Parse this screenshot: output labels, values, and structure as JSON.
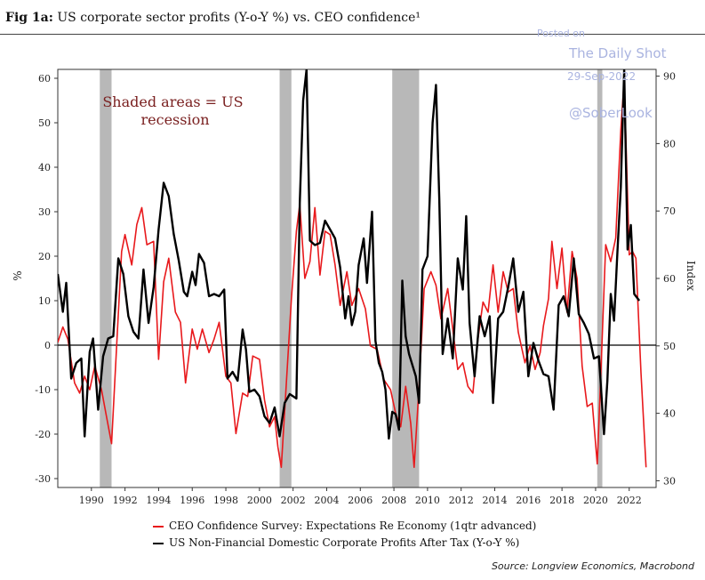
{
  "figure": {
    "label": "Fig 1a:",
    "title": "US corporate sector profits (Y-o-Y %) vs. CEO confidence¹"
  },
  "watermark": {
    "posted": "Posted on",
    "name": "The Daily Shot",
    "date": "29-Sep-2022",
    "handle": "@SoberLook"
  },
  "annotation": {
    "line1": "Shaded areas = US",
    "line2": "recession"
  },
  "legend": {
    "ceo": "CEO Confidence Survey: Expectations Re Economy (1qtr advanced)",
    "profits": "US Non-Financial Domestic Corporate Profits After Tax (Y-o-Y %)"
  },
  "source": "Source: Longview Economics, Macrobond",
  "chart_data": {
    "type": "line",
    "xlabel": "",
    "ylabel_left": "%",
    "ylabel_right": "Index",
    "xlim": [
      1988.0,
      2023.6
    ],
    "ylim_left": [
      -32,
      62
    ],
    "ylim_right": [
      29,
      91
    ],
    "x_ticks": [
      1990,
      1992,
      1994,
      1996,
      1998,
      2000,
      2002,
      2004,
      2006,
      2008,
      2010,
      2012,
      2014,
      2016,
      2018,
      2020,
      2022
    ],
    "y_left_ticks": [
      -30,
      -20,
      -10,
      0,
      10,
      20,
      30,
      40,
      50,
      60
    ],
    "y_right_ticks": [
      30,
      40,
      50,
      60,
      70,
      80,
      90
    ],
    "grid": false,
    "recessions": [
      [
        1990.5,
        1991.2
      ],
      [
        2001.2,
        2001.9
      ],
      [
        2007.9,
        2009.5
      ],
      [
        2020.1,
        2020.4
      ]
    ],
    "colors": {
      "ceo": "#e8191c",
      "profits": "#000000",
      "recession": "#b8b8b8"
    },
    "series": [
      {
        "name": "CEO Confidence Survey: Expectations Re Economy (1qtr advanced)",
        "axis": "right",
        "color": "#e8191c",
        "points": [
          [
            1988.0,
            50.5
          ],
          [
            1988.3,
            52.8
          ],
          [
            1988.6,
            51.0
          ],
          [
            1989.0,
            44.5
          ],
          [
            1989.3,
            43.0
          ],
          [
            1989.6,
            45.5
          ],
          [
            1989.9,
            43.5
          ],
          [
            1990.2,
            47.0
          ],
          [
            1990.6,
            43.5
          ],
          [
            1990.9,
            39.5
          ],
          [
            1991.2,
            35.5
          ],
          [
            1991.5,
            50.0
          ],
          [
            1991.8,
            64.0
          ],
          [
            1992.0,
            66.5
          ],
          [
            1992.4,
            62.0
          ],
          [
            1992.7,
            68.0
          ],
          [
            1993.0,
            70.5
          ],
          [
            1993.3,
            65.0
          ],
          [
            1993.7,
            65.5
          ],
          [
            1994.0,
            48.0
          ],
          [
            1994.3,
            59.5
          ],
          [
            1994.6,
            63.0
          ],
          [
            1995.0,
            55.0
          ],
          [
            1995.3,
            53.5
          ],
          [
            1995.6,
            44.5
          ],
          [
            1996.0,
            52.5
          ],
          [
            1996.3,
            49.5
          ],
          [
            1996.6,
            52.5
          ],
          [
            1997.0,
            49.0
          ],
          [
            1997.3,
            51.0
          ],
          [
            1997.6,
            53.5
          ],
          [
            1998.0,
            45.5
          ],
          [
            1998.3,
            44.5
          ],
          [
            1998.6,
            37.0
          ],
          [
            1999.0,
            43.0
          ],
          [
            1999.3,
            42.5
          ],
          [
            1999.6,
            48.5
          ],
          [
            2000.0,
            48.0
          ],
          [
            2000.3,
            42.0
          ],
          [
            2000.6,
            38.0
          ],
          [
            2000.9,
            39.5
          ],
          [
            2001.1,
            35.0
          ],
          [
            2001.3,
            32.0
          ],
          [
            2001.6,
            44.5
          ],
          [
            2001.9,
            57.0
          ],
          [
            2002.2,
            67.0
          ],
          [
            2002.4,
            71.0
          ],
          [
            2002.7,
            60.0
          ],
          [
            2003.0,
            62.5
          ],
          [
            2003.3,
            70.5
          ],
          [
            2003.6,
            60.5
          ],
          [
            2003.9,
            67.0
          ],
          [
            2004.2,
            66.5
          ],
          [
            2004.5,
            62.0
          ],
          [
            2004.8,
            56.0
          ],
          [
            2005.2,
            61.0
          ],
          [
            2005.5,
            56.0
          ],
          [
            2005.9,
            58.5
          ],
          [
            2006.3,
            55.5
          ],
          [
            2006.6,
            50.0
          ],
          [
            2007.0,
            49.5
          ],
          [
            2007.4,
            45.0
          ],
          [
            2007.8,
            43.5
          ],
          [
            2008.1,
            40.0
          ],
          [
            2008.4,
            38.0
          ],
          [
            2008.7,
            44.0
          ],
          [
            2009.0,
            38.5
          ],
          [
            2009.2,
            32.0
          ],
          [
            2009.5,
            44.0
          ],
          [
            2009.8,
            58.5
          ],
          [
            2010.2,
            61.0
          ],
          [
            2010.5,
            59.0
          ],
          [
            2010.8,
            54.0
          ],
          [
            2011.2,
            58.5
          ],
          [
            2011.5,
            52.5
          ],
          [
            2011.8,
            46.5
          ],
          [
            2012.1,
            47.5
          ],
          [
            2012.4,
            44.0
          ],
          [
            2012.7,
            43.0
          ],
          [
            2013.0,
            51.0
          ],
          [
            2013.3,
            56.5
          ],
          [
            2013.6,
            55.0
          ],
          [
            2013.9,
            62.0
          ],
          [
            2014.2,
            55.0
          ],
          [
            2014.5,
            61.0
          ],
          [
            2014.8,
            58.0
          ],
          [
            2015.1,
            58.5
          ],
          [
            2015.4,
            52.0
          ],
          [
            2015.8,
            47.5
          ],
          [
            2016.1,
            50.0
          ],
          [
            2016.4,
            46.5
          ],
          [
            2016.7,
            49.0
          ],
          [
            2016.9,
            53.0
          ],
          [
            2017.2,
            57.0
          ],
          [
            2017.4,
            65.5
          ],
          [
            2017.7,
            58.5
          ],
          [
            2018.0,
            64.5
          ],
          [
            2018.3,
            55.0
          ],
          [
            2018.6,
            64.0
          ],
          [
            2018.9,
            60.0
          ],
          [
            2019.2,
            47.0
          ],
          [
            2019.5,
            41.0
          ],
          [
            2019.8,
            41.5
          ],
          [
            2020.1,
            32.5
          ],
          [
            2020.3,
            45.0
          ],
          [
            2020.6,
            65.0
          ],
          [
            2020.9,
            62.5
          ],
          [
            2021.2,
            66.0
          ],
          [
            2021.5,
            82.0
          ],
          [
            2021.7,
            89.5
          ],
          [
            2022.0,
            63.5
          ],
          [
            2022.2,
            64.0
          ],
          [
            2022.4,
            63.0
          ],
          [
            2022.7,
            46.0
          ],
          [
            2023.0,
            32.0
          ]
        ]
      },
      {
        "name": "US Non-Financial Domestic Corporate Profits After Tax (Y-o-Y %)",
        "axis": "left",
        "color": "#000000",
        "points": [
          [
            1988.0,
            16.0
          ],
          [
            1988.3,
            7.5
          ],
          [
            1988.5,
            14.0
          ],
          [
            1988.8,
            -7.5
          ],
          [
            1989.1,
            -4.0
          ],
          [
            1989.4,
            -3.0
          ],
          [
            1989.6,
            -20.5
          ],
          [
            1989.9,
            -1.5
          ],
          [
            1990.1,
            1.5
          ],
          [
            1990.4,
            -14.5
          ],
          [
            1990.7,
            -2.5
          ],
          [
            1991.0,
            1.5
          ],
          [
            1991.3,
            2.0
          ],
          [
            1991.6,
            19.5
          ],
          [
            1991.9,
            16.0
          ],
          [
            1992.2,
            6.5
          ],
          [
            1992.5,
            3.0
          ],
          [
            1992.8,
            1.5
          ],
          [
            1993.1,
            17.0
          ],
          [
            1993.4,
            5.0
          ],
          [
            1993.7,
            13.0
          ],
          [
            1994.0,
            26.0
          ],
          [
            1994.3,
            36.5
          ],
          [
            1994.6,
            33.5
          ],
          [
            1994.9,
            25.0
          ],
          [
            1995.2,
            19.0
          ],
          [
            1995.5,
            12.0
          ],
          [
            1995.7,
            11.0
          ],
          [
            1996.0,
            16.5
          ],
          [
            1996.2,
            13.5
          ],
          [
            1996.4,
            20.5
          ],
          [
            1996.7,
            18.5
          ],
          [
            1997.0,
            11.0
          ],
          [
            1997.3,
            11.5
          ],
          [
            1997.6,
            11.0
          ],
          [
            1997.9,
            12.5
          ],
          [
            1998.1,
            -7.5
          ],
          [
            1998.4,
            -6.0
          ],
          [
            1998.7,
            -8.0
          ],
          [
            1999.0,
            3.5
          ],
          [
            1999.2,
            -1.0
          ],
          [
            1999.4,
            -10.5
          ],
          [
            1999.7,
            -10.0
          ],
          [
            2000.0,
            -11.5
          ],
          [
            2000.3,
            -16.0
          ],
          [
            2000.6,
            -17.5
          ],
          [
            2000.9,
            -14.0
          ],
          [
            2001.2,
            -20.5
          ],
          [
            2001.5,
            -13.0
          ],
          [
            2001.8,
            -11.0
          ],
          [
            2002.0,
            -11.5
          ],
          [
            2002.2,
            -12.0
          ],
          [
            2002.4,
            32.0
          ],
          [
            2002.6,
            55.0
          ],
          [
            2002.8,
            62.0
          ],
          [
            2003.0,
            23.5
          ],
          [
            2003.3,
            22.5
          ],
          [
            2003.6,
            23.0
          ],
          [
            2003.9,
            28.0
          ],
          [
            2004.2,
            26.0
          ],
          [
            2004.5,
            24.0
          ],
          [
            2004.8,
            17.5
          ],
          [
            2005.1,
            6.0
          ],
          [
            2005.3,
            11.0
          ],
          [
            2005.5,
            4.5
          ],
          [
            2005.7,
            7.5
          ],
          [
            2005.9,
            18.0
          ],
          [
            2006.2,
            24.0
          ],
          [
            2006.4,
            14.0
          ],
          [
            2006.7,
            30.0
          ],
          [
            2006.9,
            1.0
          ],
          [
            2007.1,
            -4.0
          ],
          [
            2007.3,
            -6.0
          ],
          [
            2007.5,
            -10.0
          ],
          [
            2007.7,
            -21.0
          ],
          [
            2007.9,
            -15.0
          ],
          [
            2008.1,
            -15.5
          ],
          [
            2008.3,
            -19.0
          ],
          [
            2008.5,
            14.5
          ],
          [
            2008.7,
            2.0
          ],
          [
            2008.9,
            -2.0
          ],
          [
            2009.1,
            -4.5
          ],
          [
            2009.3,
            -7.0
          ],
          [
            2009.5,
            -13.0
          ],
          [
            2009.7,
            17.0
          ],
          [
            2010.0,
            20.0
          ],
          [
            2010.3,
            50.0
          ],
          [
            2010.5,
            58.5
          ],
          [
            2010.7,
            33.0
          ],
          [
            2010.9,
            -2.0
          ],
          [
            2011.2,
            6.0
          ],
          [
            2011.5,
            -3.0
          ],
          [
            2011.8,
            19.5
          ],
          [
            2012.1,
            12.5
          ],
          [
            2012.3,
            29.0
          ],
          [
            2012.5,
            5.0
          ],
          [
            2012.8,
            -7.0
          ],
          [
            2013.1,
            6.5
          ],
          [
            2013.4,
            2.0
          ],
          [
            2013.7,
            6.5
          ],
          [
            2013.9,
            -13.0
          ],
          [
            2014.2,
            6.0
          ],
          [
            2014.5,
            7.5
          ],
          [
            2014.8,
            13.0
          ],
          [
            2015.1,
            19.5
          ],
          [
            2015.4,
            7.5
          ],
          [
            2015.7,
            12.0
          ],
          [
            2016.0,
            -7.0
          ],
          [
            2016.3,
            0.5
          ],
          [
            2016.6,
            -3.5
          ],
          [
            2016.9,
            -6.5
          ],
          [
            2017.2,
            -7.0
          ],
          [
            2017.5,
            -14.5
          ],
          [
            2017.8,
            9.0
          ],
          [
            2018.1,
            11.0
          ],
          [
            2018.4,
            6.5
          ],
          [
            2018.7,
            19.5
          ],
          [
            2019.0,
            7.0
          ],
          [
            2019.3,
            5.0
          ],
          [
            2019.6,
            2.5
          ],
          [
            2019.9,
            -3.0
          ],
          [
            2020.2,
            -2.5
          ],
          [
            2020.5,
            -20.0
          ],
          [
            2020.7,
            -8.0
          ],
          [
            2020.9,
            11.5
          ],
          [
            2021.1,
            5.5
          ],
          [
            2021.3,
            21.0
          ],
          [
            2021.5,
            35.5
          ],
          [
            2021.7,
            62.0
          ],
          [
            2021.9,
            21.5
          ],
          [
            2022.1,
            27.0
          ],
          [
            2022.3,
            11.5
          ],
          [
            2022.6,
            10.0
          ]
        ]
      }
    ]
  }
}
